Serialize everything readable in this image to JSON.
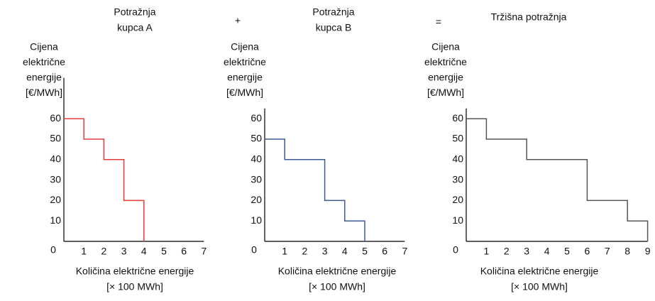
{
  "operators": [
    "+",
    "="
  ],
  "chart_data": [
    {
      "type": "step",
      "title": [
        "Potražnja",
        "kupca A"
      ],
      "y_label": [
        "Cijena",
        "električne",
        "energije",
        "[€/MWh]"
      ],
      "x_label": [
        "Količina električne energije",
        "[× 100 MWh]"
      ],
      "x": [
        0,
        1,
        2,
        3,
        4
      ],
      "values": [
        60,
        50,
        40,
        20,
        0
      ],
      "color": "#e23a3a",
      "xlim": [
        0,
        7
      ],
      "xticks": [
        1,
        2,
        3,
        4,
        5,
        6,
        7
      ],
      "ylim": [
        0,
        80
      ],
      "yticks": [
        0,
        10,
        20,
        30,
        40,
        50,
        60
      ],
      "grid": false
    },
    {
      "type": "step",
      "title": [
        "Potražnja",
        "kupca B"
      ],
      "y_label": [
        "Cijena",
        "električne",
        "energije",
        "[€/MWh]"
      ],
      "x_label": [
        "Količina električne energije",
        "[× 100 MWh]"
      ],
      "x": [
        0,
        1,
        3,
        4,
        5
      ],
      "values": [
        50,
        40,
        20,
        10,
        0
      ],
      "color": "#3d5a96",
      "xlim": [
        0,
        7
      ],
      "xticks": [
        1,
        2,
        3,
        4,
        5,
        6,
        7
      ],
      "ylim": [
        0,
        65
      ],
      "yticks": [
        0,
        10,
        20,
        30,
        40,
        50,
        60
      ],
      "grid": false
    },
    {
      "type": "step",
      "title": [
        "Tržišna potražnja"
      ],
      "y_label": [
        "Cijena",
        "električne",
        "energije",
        "[€/MWh]"
      ],
      "x_label": [
        "Količina električne energije",
        "[× 100 MWh]"
      ],
      "x": [
        0,
        1,
        3,
        6,
        8,
        9
      ],
      "values": [
        60,
        50,
        40,
        20,
        10,
        0
      ],
      "color": "#555555",
      "xlim": [
        0,
        9
      ],
      "xticks": [
        1,
        2,
        3,
        4,
        5,
        6,
        7,
        8,
        9
      ],
      "ylim": [
        0,
        65
      ],
      "yticks": [
        0,
        10,
        20,
        30,
        40,
        50,
        60
      ],
      "grid": false
    }
  ]
}
